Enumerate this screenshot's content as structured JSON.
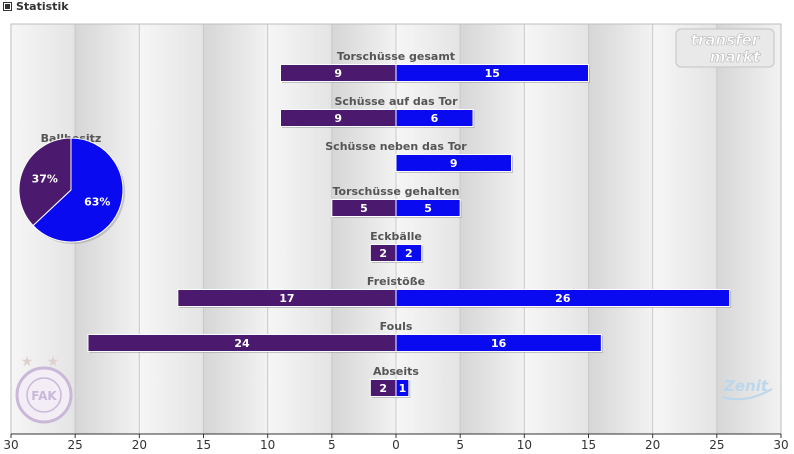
{
  "header": {
    "title": "Statistik"
  },
  "watermark": {
    "line1": "transfer",
    "line2": "markt"
  },
  "team_logos": {
    "home": "FAK",
    "away": "Zenit"
  },
  "colors": {
    "home": "#4b1a6e",
    "away": "#0a0af0",
    "stripe": "#dcdcdc",
    "axis": "#333333"
  },
  "chart_data": [
    {
      "type": "bar",
      "orientation": "horizontal-diverging",
      "xlim": [
        -30,
        30
      ],
      "tick_labels": [
        "30",
        "25",
        "20",
        "15",
        "10",
        "5",
        "0",
        "5",
        "10",
        "15",
        "20",
        "25",
        "30"
      ],
      "grid": true,
      "categories": [
        "Torschüsse gesamt",
        "Schüsse auf das Tor",
        "Schüsse neben das Tor",
        "Torschüsse gehalten",
        "Eckbälle",
        "Freistöße",
        "Fouls",
        "Abseits"
      ],
      "series": [
        {
          "values": [
            9,
            9,
            0,
            5,
            2,
            17,
            24,
            2
          ]
        },
        {
          "values": [
            15,
            6,
            9,
            5,
            2,
            26,
            16,
            1
          ]
        }
      ]
    },
    {
      "type": "pie",
      "title": "Ballbesitz",
      "values": [
        37,
        63
      ],
      "labels": [
        "37%",
        "63%"
      ]
    }
  ]
}
